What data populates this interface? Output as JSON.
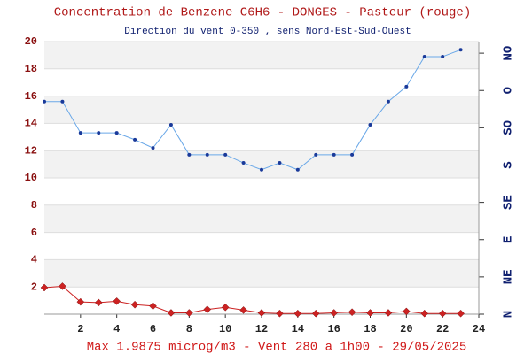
{
  "chart_data": {
    "type": "line",
    "title": "Concentration de Benzene C6H6  -   DONGES - Pasteur (rouge)",
    "subtitle": "Direction du vent 0-350 , sens Nord-Est-Sud-Ouest",
    "footer": "Max 1.9875 microg/m3 - Vent 280  a 1h00 - 29/05/2025",
    "x": [
      0,
      1,
      2,
      3,
      4,
      5,
      6,
      7,
      8,
      9,
      10,
      11,
      12,
      13,
      14,
      15,
      16,
      17,
      18,
      19,
      20,
      21,
      22,
      23
    ],
    "xlim": [
      0,
      24
    ],
    "xticks": [
      2,
      4,
      6,
      8,
      10,
      12,
      14,
      16,
      18,
      20,
      22,
      24
    ],
    "ylim": [
      0,
      20
    ],
    "yticks": [
      2,
      4,
      6,
      8,
      10,
      12,
      14,
      16,
      18,
      20
    ],
    "y2lim": [
      0,
      329
    ],
    "y2ticks": [
      {
        "value": 0,
        "label": "N"
      },
      {
        "value": 45,
        "label": "NE"
      },
      {
        "value": 90,
        "label": "E"
      },
      {
        "value": 135,
        "label": "SE"
      },
      {
        "value": 180,
        "label": "S"
      },
      {
        "value": 225,
        "label": "SO"
      },
      {
        "value": 270,
        "label": "O"
      },
      {
        "value": 315,
        "label": "NO"
      }
    ],
    "grid": true,
    "series": [
      {
        "color": "#6aa8e8",
        "marker": "#1a3a9a",
        "values": [
          15.6,
          15.6,
          13.3,
          13.3,
          13.3,
          12.8,
          12.2,
          13.9,
          11.7,
          11.7,
          11.7,
          11.1,
          10.6,
          11.1,
          10.6,
          11.7,
          11.7,
          11.7,
          13.9,
          15.6,
          16.7,
          18.9,
          18.9,
          19.4
        ]
      },
      {
        "color": "#cc2222",
        "marker": "#cc2222",
        "values": [
          1.95,
          2.05,
          0.9,
          0.85,
          0.95,
          0.7,
          0.6,
          0.1,
          0.1,
          0.35,
          0.5,
          0.3,
          0.1,
          0.05,
          0.05,
          0.05,
          0.1,
          0.15,
          0.1,
          0.1,
          0.2,
          0.05,
          0.05,
          0.05
        ]
      }
    ]
  }
}
